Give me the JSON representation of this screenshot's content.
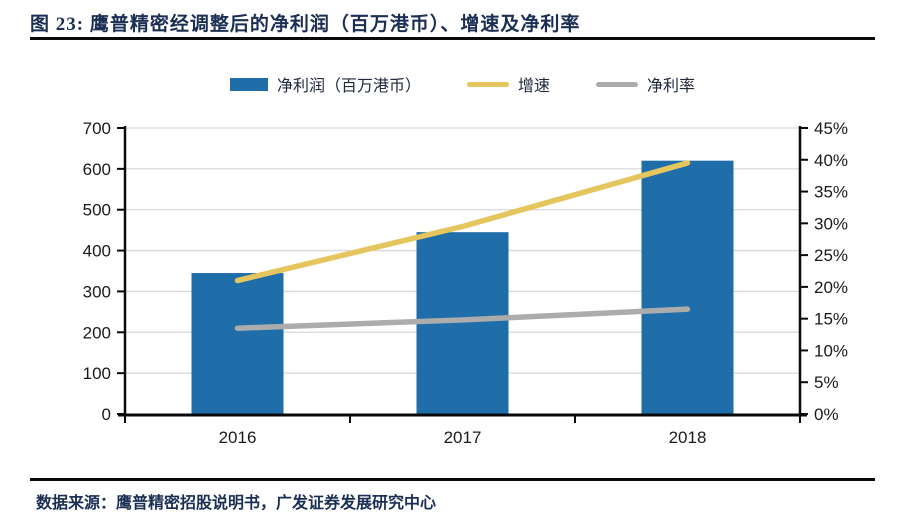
{
  "page": {
    "title": "图 23: 鹰普精密经调整后的净利润（百万港币）、增速及净利率",
    "source": "数据来源：鹰普精密招股说明书，广发证券发展研究中心"
  },
  "colors": {
    "title_text": "#1B2F54",
    "rule": "#0A0A0A",
    "bar_blue": "#1F6DA9",
    "line_yellow": "#E5C55E",
    "line_gray": "#ACACAC",
    "gridline": "#D9D9D9",
    "axis": "#0A0A0A",
    "axis_label": "#1A1A1A"
  },
  "chart_data": {
    "type": "bar",
    "subtype": "combo-bar-line-dual-axis",
    "title": "鹰普精密经调整后的净利润（百万港币）、增速及净利率",
    "categories": [
      "2016",
      "2017",
      "2018"
    ],
    "series": [
      {
        "name": "净利润（百万港币）",
        "kind": "bar",
        "axis": "left",
        "values": [
          345,
          445,
          620
        ],
        "color": "#1F6DA9"
      },
      {
        "name": "增速",
        "kind": "line",
        "axis": "right",
        "values": [
          21.0,
          29.5,
          39.5
        ],
        "unit": "%",
        "color": "#E5C55E"
      },
      {
        "name": "净利率",
        "kind": "line",
        "axis": "right",
        "values": [
          13.5,
          14.8,
          16.5
        ],
        "unit": "%",
        "color": "#ACACAC"
      }
    ],
    "left_axis": {
      "min": 0,
      "max": 700,
      "step": 100,
      "labels": [
        "0",
        "100",
        "200",
        "300",
        "400",
        "500",
        "600",
        "700"
      ]
    },
    "right_axis": {
      "min": 0,
      "max": 45,
      "step": 5,
      "suffix": "%",
      "labels": [
        "0%",
        "5%",
        "10%",
        "15%",
        "20%",
        "25%",
        "30%",
        "35%",
        "40%",
        "45%"
      ]
    },
    "grid": true,
    "legend_position": "top"
  }
}
